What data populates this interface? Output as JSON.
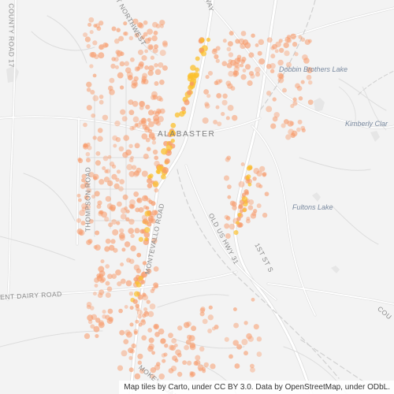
{
  "map": {
    "city_label": "ALABASTER",
    "road_labels": {
      "county_road_17": "COUNTY ROAD 17",
      "thompson_road": "THOMPSON ROAD",
      "montevallo_road": "MONTEVALLO ROAD",
      "smokey_road": "MOKEY ROAD",
      "old_us_hwy_31": "OLD US HWY 31",
      "first_st_sw": "1ST ST S",
      "parkway": "WAY",
      "northwest": "ET NORTHWEST",
      "dairy_road": "ENT DAIRY ROAD",
      "county_road_right": "COU"
    },
    "water_labels": {
      "dobbin_brothers_lake": "Dobbin Brothers Lake",
      "kimberly_clark": "Kimberly Clar",
      "fultons_lake": "Fultons Lake"
    },
    "attribution": "Map tiles by Carto, under CC BY 3.0. Data by OpenStreetMap, under ODbL.",
    "colors": {
      "background": "#f3f3f3",
      "road": "#ffffff",
      "road_casing": "#dcdcdc",
      "railroad": "#cfcfcf",
      "low_density_point": "#f79a6a",
      "high_density_point": "#fbc02d"
    }
  }
}
